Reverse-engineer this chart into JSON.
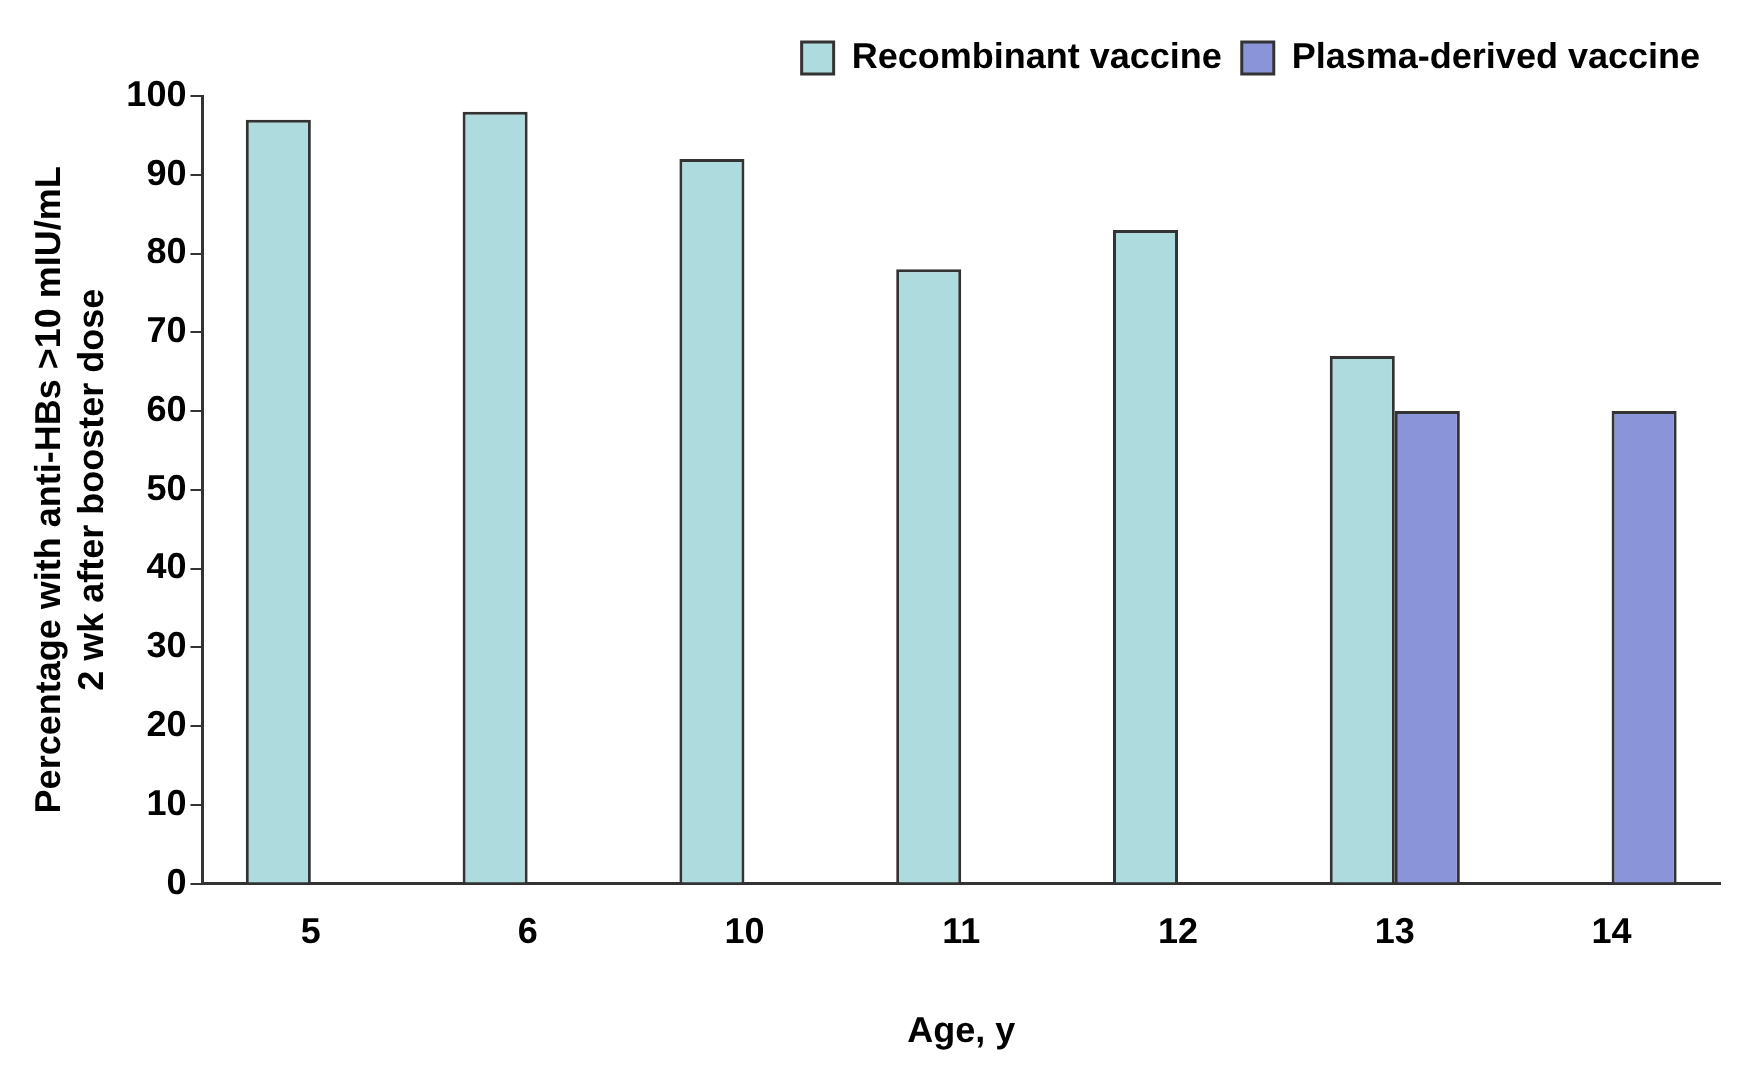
{
  "chart_data": {
    "type": "bar",
    "categories": [
      "5",
      "6",
      "10",
      "11",
      "12",
      "13",
      "14"
    ],
    "series": [
      {
        "name": "Recombinant vaccine",
        "color": "#aedcde",
        "values": [
          97,
          98,
          92,
          78,
          83,
          67,
          null
        ]
      },
      {
        "name": "Plasma-derived vaccine",
        "color": "#8a94d8",
        "values": [
          null,
          null,
          null,
          null,
          null,
          60,
          60
        ]
      }
    ],
    "xlabel": "Age, y",
    "ylabel": "Percentage with anti-HBs >10 mIU/mL\n2 wk after booster dose",
    "ylim": [
      0,
      100
    ],
    "yticks": [
      0,
      10,
      20,
      30,
      40,
      50,
      60,
      70,
      80,
      90,
      100
    ],
    "grid": false,
    "legend": "top right"
  }
}
